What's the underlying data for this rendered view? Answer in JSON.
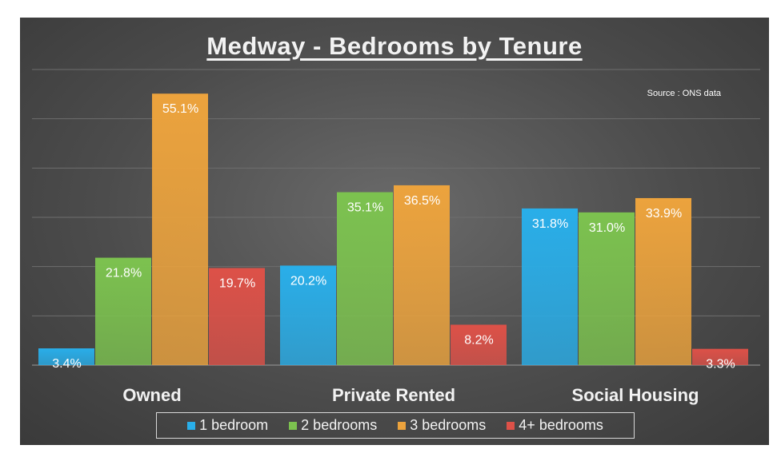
{
  "chart_data": {
    "type": "bar",
    "title": "Medway - Bedrooms by Tenure",
    "source_note": "Source : ONS data",
    "categories": [
      "Owned",
      "Private Rented",
      "Social Housing"
    ],
    "series": [
      {
        "name": "1 bedroom",
        "color": "#29aee9",
        "values": [
          3.4,
          20.2,
          31.8
        ],
        "labels": [
          "3.4%",
          "20.2%",
          "31.8%"
        ]
      },
      {
        "name": "2 bedrooms",
        "color": "#7cc24f",
        "values": [
          21.8,
          35.1,
          31.0
        ],
        "labels": [
          "21.8%",
          "35.1%",
          "31.0%"
        ]
      },
      {
        "name": "3 bedrooms",
        "color": "#eca33d",
        "values": [
          55.1,
          36.5,
          33.9
        ],
        "labels": [
          "55.1%",
          "36.5%",
          "33.9%"
        ]
      },
      {
        "name": "4+ bedrooms",
        "color": "#dd5148",
        "values": [
          19.7,
          8.2,
          3.3
        ],
        "labels": [
          "19.7%",
          "8.2%",
          "3.3%"
        ]
      }
    ],
    "ylim": [
      0,
      60
    ],
    "grid": true,
    "legend_position": "bottom"
  }
}
